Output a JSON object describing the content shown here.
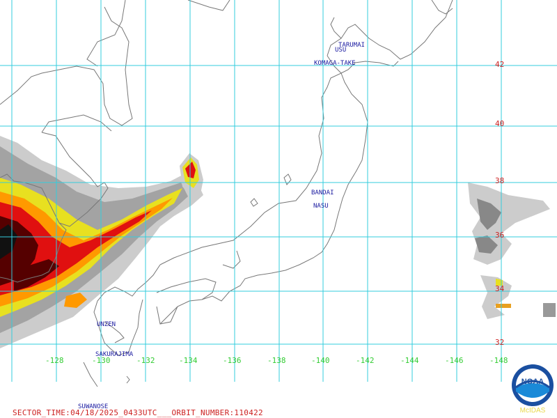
{
  "map": {
    "lon_labels": [
      "-128",
      "-130",
      "-132",
      "-134",
      "-136",
      "-138",
      "-140",
      "-142",
      "-144",
      "-146",
      "-148"
    ],
    "lat_labels": [
      "42",
      "40",
      "38",
      "36",
      "34",
      "32"
    ],
    "volcanoes": [
      {
        "name": "TARUMAI"
      },
      {
        "name": "USU"
      },
      {
        "name": "KOMAGA-TAKE"
      },
      {
        "name": "BANDAI"
      },
      {
        "name": "NASU"
      },
      {
        "name": "UNZEN"
      },
      {
        "name": "SAKURAJIMA"
      },
      {
        "name": "SUWANOSE"
      }
    ],
    "colors": {
      "gridline": "#33ccdd",
      "coastline": "#777777",
      "lon_label": "#33cc33",
      "lat_label": "#cc2222",
      "volcano_label": "#1a1aa0",
      "precip_light": "#cccccc",
      "precip_medium": "#888888",
      "precip_yellow": "#e8e020",
      "precip_orange": "#ff9900",
      "precip_red": "#e01010",
      "precip_dark": "#550000"
    }
  },
  "footer": {
    "text": "SECTOR_TIME:04/18/2025_0433UTC___ORBIT_NUMBER:110422"
  },
  "logo": {
    "badge": "NOAA",
    "caption": "McIDAS"
  }
}
